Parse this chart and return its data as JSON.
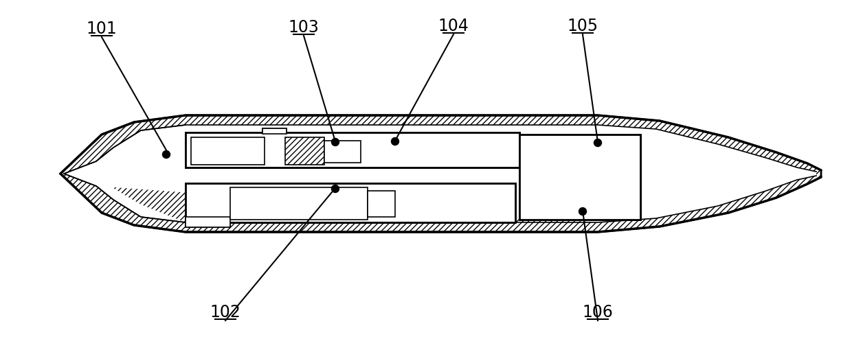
{
  "bg_color": "#ffffff",
  "line_color": "#000000",
  "lw_main": 2.0,
  "lw_thin": 1.2,
  "hatch": "////",
  "fig_width": 12.4,
  "fig_height": 5.07,
  "dpi": 100
}
